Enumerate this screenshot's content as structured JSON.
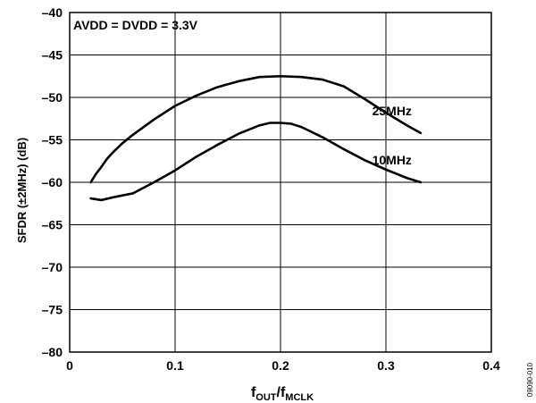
{
  "chart_data": {
    "type": "line",
    "annotation": "AVDD = DVDD = 3.3V",
    "ylabel": "SFDR (±2MHz) (dB)",
    "xlabel": {
      "main": "f",
      "sub1": "OUT",
      "sep": "/f",
      "sub2": "MCLK"
    },
    "xlim": [
      0,
      0.4
    ],
    "ylim": [
      -80,
      -40
    ],
    "xticks": [
      0,
      0.1,
      0.2,
      0.3,
      0.4
    ],
    "yticks": [
      -40,
      -45,
      -50,
      -55,
      -60,
      -65,
      -70,
      -75,
      -80
    ],
    "xtick_labels": [
      "0",
      "0.1",
      "0.2",
      "0.3",
      "0.4"
    ],
    "ytick_labels": [
      "–40",
      "–45",
      "–50",
      "–55",
      "–60",
      "–65",
      "–70",
      "–75",
      "–80"
    ],
    "grid": true,
    "figure_code": "09090-010",
    "series": [
      {
        "name": "25MHz",
        "x": [
          0.02,
          0.025,
          0.03,
          0.035,
          0.04,
          0.05,
          0.06,
          0.08,
          0.1,
          0.12,
          0.14,
          0.16,
          0.18,
          0.2,
          0.22,
          0.24,
          0.26,
          0.28,
          0.3,
          0.32,
          0.333
        ],
        "y": [
          -60.0,
          -59.0,
          -58.2,
          -57.3,
          -56.6,
          -55.4,
          -54.4,
          -52.6,
          -51.0,
          -49.8,
          -48.8,
          -48.1,
          -47.6,
          -47.5,
          -47.6,
          -47.9,
          -48.7,
          -50.2,
          -51.8,
          -53.3,
          -54.2
        ]
      },
      {
        "name": "10MHz",
        "x": [
          0.02,
          0.03,
          0.04,
          0.06,
          0.08,
          0.1,
          0.12,
          0.14,
          0.16,
          0.18,
          0.19,
          0.2,
          0.21,
          0.22,
          0.24,
          0.26,
          0.28,
          0.3,
          0.32,
          0.333
        ],
        "y": [
          -61.9,
          -62.1,
          -61.8,
          -61.3,
          -60.0,
          -58.6,
          -57.0,
          -55.6,
          -54.3,
          -53.3,
          -53.0,
          -53.0,
          -53.1,
          -53.5,
          -54.7,
          -56.1,
          -57.4,
          -58.5,
          -59.5,
          -60.0
        ]
      }
    ]
  }
}
